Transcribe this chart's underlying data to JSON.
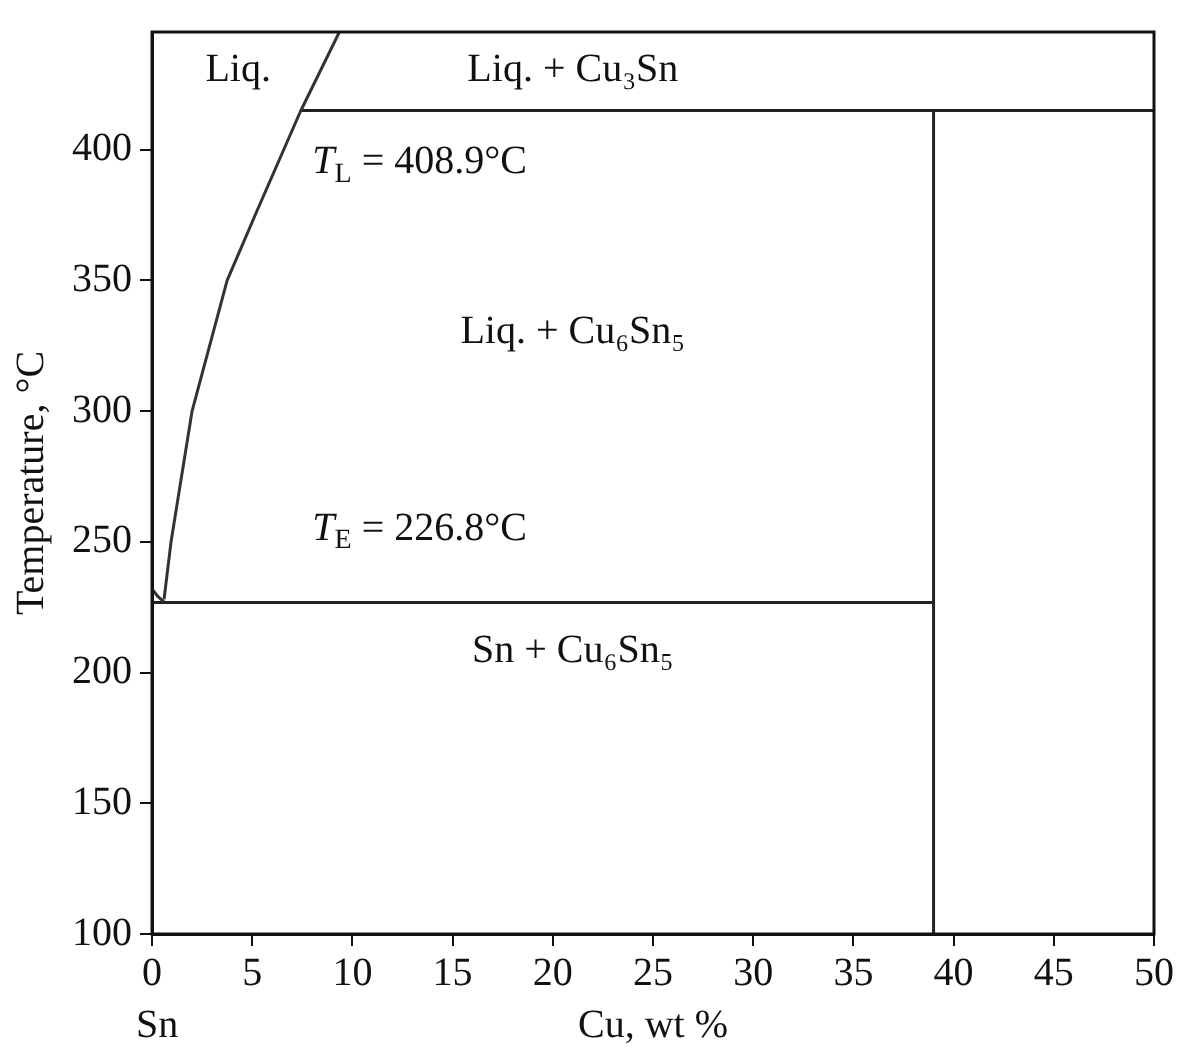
{
  "chart_data": {
    "type": "line",
    "xlabel": "Cu, wt %",
    "ylabel": "Temperature, °C",
    "xlim": [
      0,
      50
    ],
    "xticks": [
      0,
      5,
      10,
      15,
      20,
      25,
      30,
      35,
      40,
      45,
      50
    ],
    "ylim": [
      100,
      445
    ],
    "yticks": [
      100,
      150,
      200,
      250,
      300,
      350,
      400
    ],
    "grid": false,
    "legend": false,
    "marker": "none",
    "line_style": "solid",
    "series": [
      {
        "color": "#333333",
        "x": [
          0.6,
          0.95,
          2.0,
          3.75,
          5.15,
          7.4,
          9.35
        ],
        "values": [
          228,
          250,
          300,
          350,
          375,
          414.5,
          445
        ]
      },
      {
        "color": "#333333",
        "x": [
          0,
          0.3,
          0.6
        ],
        "values": [
          232,
          229,
          227
        ]
      },
      {
        "color": "#222222",
        "x": [
          0,
          39
        ],
        "values": [
          226.8,
          226.8
        ]
      },
      {
        "color": "#222222",
        "x": [
          7.4,
          50
        ],
        "values": [
          415,
          415
        ]
      },
      {
        "color": "#222222",
        "x": [
          39,
          39
        ],
        "values": [
          100,
          415
        ]
      }
    ],
    "annotations": [
      "Liq.",
      "Liq. + Cu₃Sn",
      "T$_{L}$ = 408.9°C",
      "Liq. + Cu₆Sn₅",
      "T$_{E}$ = 226.8°C",
      "Sn + Cu₆Sn₅",
      "Sn"
    ]
  }
}
